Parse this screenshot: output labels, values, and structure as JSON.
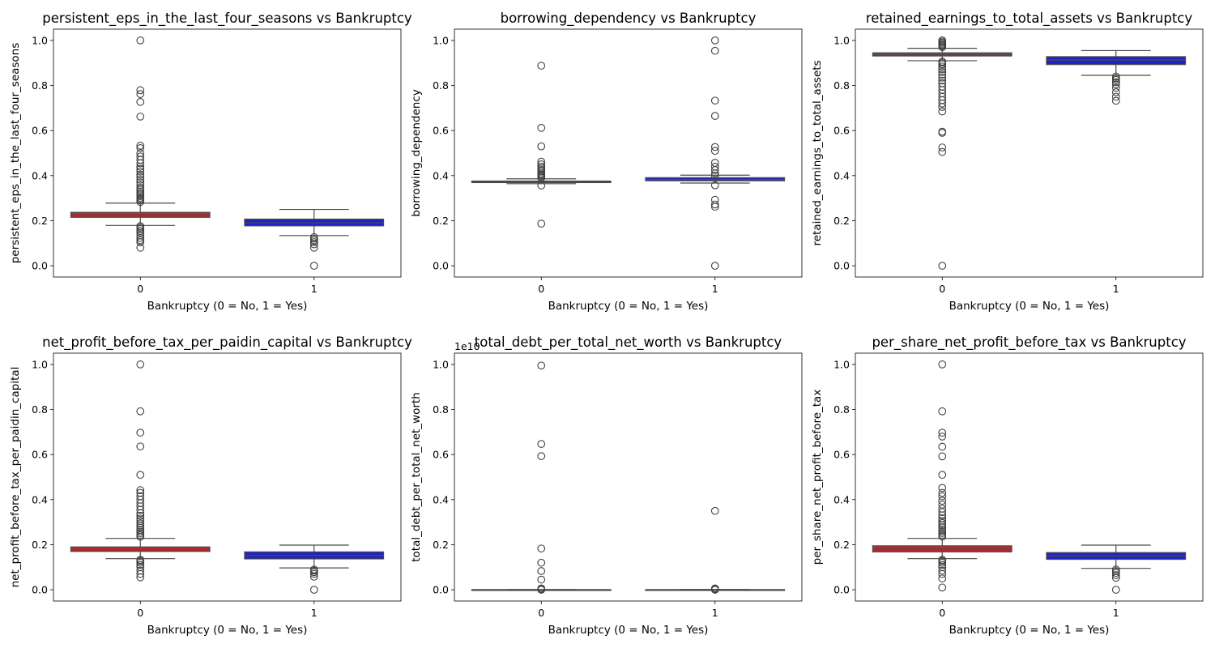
{
  "figure": {
    "colors": {
      "class_0": "#c0282c",
      "class_1": "#1f22c9",
      "line": "#4a4a4a"
    }
  },
  "chart_data": [
    {
      "type": "box",
      "title": "persistent_eps_in_the_last_four_seasons vs Bankruptcy",
      "xlabel": "Bankruptcy (0 = No, 1 = Yes)",
      "ylabel": "persistent_eps_in_the_last_four_seasons",
      "categories": [
        "0",
        "1"
      ],
      "ylim": [
        -0.05,
        1.05
      ],
      "yticks": [
        0.0,
        0.2,
        0.4,
        0.6,
        0.8,
        1.0
      ],
      "ytick_labels": [
        "0.0",
        "0.2",
        "0.4",
        "0.6",
        "0.8",
        "1.0"
      ],
      "offset_text": "",
      "boxes": [
        {
          "q1": 0.215,
          "median": 0.224,
          "q3": 0.237,
          "whislo": 0.179,
          "whishi": 0.278,
          "color": "#c0282c",
          "fliers": [
            0.08,
            0.104,
            0.113,
            0.123,
            0.135,
            0.147,
            0.155,
            0.163,
            0.17,
            0.176,
            0.283,
            0.29,
            0.296,
            0.302,
            0.309,
            0.316,
            0.322,
            0.33,
            0.338,
            0.346,
            0.358,
            0.37,
            0.382,
            0.395,
            0.405,
            0.418,
            0.43,
            0.44,
            0.455,
            0.47,
            0.485,
            0.5,
            0.522,
            0.533,
            0.662,
            0.727,
            0.762,
            0.779,
            1.0
          ]
        },
        {
          "q1": 0.177,
          "median": 0.19,
          "q3": 0.207,
          "whislo": 0.134,
          "whishi": 0.25,
          "color": "#1f22c9",
          "fliers": [
            0.0,
            0.08,
            0.095,
            0.105,
            0.113,
            0.12,
            0.127
          ]
        }
      ]
    },
    {
      "type": "box",
      "title": "borrowing_dependency vs Bankruptcy",
      "xlabel": "Bankruptcy (0 = No, 1 = Yes)",
      "ylabel": "borrowing_dependency",
      "categories": [
        "0",
        "1"
      ],
      "ylim": [
        -0.05,
        1.05
      ],
      "yticks": [
        0.0,
        0.2,
        0.4,
        0.6,
        0.8,
        1.0
      ],
      "ytick_labels": [
        "0.0",
        "0.2",
        "0.4",
        "0.6",
        "0.8",
        "1.0"
      ],
      "offset_text": "",
      "boxes": [
        {
          "q1": 0.369,
          "median": 0.372,
          "q3": 0.376,
          "whislo": 0.364,
          "whishi": 0.386,
          "color": "#c0282c",
          "fliers": [
            0.187,
            0.356,
            0.39,
            0.395,
            0.4,
            0.405,
            0.41,
            0.418,
            0.425,
            0.432,
            0.44,
            0.45,
            0.462,
            0.53,
            0.612,
            0.888
          ]
        },
        {
          "q1": 0.377,
          "median": 0.383,
          "q3": 0.391,
          "whislo": 0.367,
          "whishi": 0.402,
          "color": "#1f22c9",
          "fliers": [
            0.0,
            0.262,
            0.272,
            0.293,
            0.357,
            0.4,
            0.41,
            0.425,
            0.44,
            0.457,
            0.51,
            0.527,
            0.665,
            0.733,
            0.954,
            1.0
          ]
        }
      ]
    },
    {
      "type": "box",
      "title": "retained_earnings_to_total_assets vs Bankruptcy",
      "xlabel": "Bankruptcy (0 = No, 1 = Yes)",
      "ylabel": "retained_earnings_to_total_assets",
      "categories": [
        "0",
        "1"
      ],
      "ylim": [
        -0.05,
        1.05
      ],
      "yticks": [
        0.0,
        0.2,
        0.4,
        0.6,
        0.8,
        1.0
      ],
      "ytick_labels": [
        "0.0",
        "0.2",
        "0.4",
        "0.6",
        "0.8",
        "1.0"
      ],
      "offset_text": "",
      "boxes": [
        {
          "q1": 0.931,
          "median": 0.937,
          "q3": 0.945,
          "whislo": 0.91,
          "whishi": 0.965,
          "color": "#c0282c",
          "fliers": [
            0.0,
            0.505,
            0.525,
            0.59,
            0.595,
            0.685,
            0.705,
            0.72,
            0.735,
            0.75,
            0.765,
            0.78,
            0.795,
            0.81,
            0.822,
            0.835,
            0.848,
            0.86,
            0.872,
            0.884,
            0.894,
            0.902,
            0.906,
            0.97,
            0.975,
            0.98,
            0.985,
            0.99,
            0.995,
            1.0
          ]
        },
        {
          "q1": 0.893,
          "median": 0.913,
          "q3": 0.928,
          "whislo": 0.845,
          "whishi": 0.955,
          "color": "#1f22c9",
          "fliers": [
            0.732,
            0.75,
            0.77,
            0.79,
            0.805,
            0.815,
            0.825,
            0.832,
            0.84
          ]
        }
      ]
    },
    {
      "type": "box",
      "title": "net_profit_before_tax_per_paidin_capital vs Bankruptcy",
      "xlabel": "Bankruptcy (0 = No, 1 = Yes)",
      "ylabel": "net_profit_before_tax_per_paidin_capital",
      "categories": [
        "0",
        "1"
      ],
      "ylim": [
        -0.05,
        1.05
      ],
      "yticks": [
        0.0,
        0.2,
        0.4,
        0.6,
        0.8,
        1.0
      ],
      "ytick_labels": [
        "0.0",
        "0.2",
        "0.4",
        "0.6",
        "0.8",
        "1.0"
      ],
      "offset_text": "",
      "boxes": [
        {
          "q1": 0.17,
          "median": 0.178,
          "q3": 0.19,
          "whislo": 0.138,
          "whishi": 0.228,
          "color": "#c0282c",
          "fliers": [
            0.055,
            0.07,
            0.085,
            0.1,
            0.11,
            0.12,
            0.128,
            0.133,
            0.235,
            0.242,
            0.25,
            0.258,
            0.266,
            0.275,
            0.284,
            0.294,
            0.305,
            0.316,
            0.328,
            0.34,
            0.355,
            0.37,
            0.385,
            0.4,
            0.415,
            0.43,
            0.442,
            0.51,
            0.636,
            0.697,
            0.792,
            1.0
          ]
        },
        {
          "q1": 0.137,
          "median": 0.152,
          "q3": 0.168,
          "whislo": 0.097,
          "whishi": 0.198,
          "color": "#1f22c9",
          "fliers": [
            0.0,
            0.058,
            0.07,
            0.078,
            0.085,
            0.09
          ]
        }
      ]
    },
    {
      "type": "box",
      "title": "total_debt_per_total_net_worth vs Bankruptcy",
      "xlabel": "Bankruptcy (0 = No, 1 = Yes)",
      "ylabel": "total_debt_per_total_net_worth",
      "categories": [
        "0",
        "1"
      ],
      "ylim": [
        -0.05,
        1.05
      ],
      "yticks": [
        0.0,
        0.2,
        0.4,
        0.6,
        0.8,
        1.0
      ],
      "ytick_labels": [
        "0.0",
        "0.2",
        "0.4",
        "0.6",
        "0.8",
        "1.0"
      ],
      "offset_text": "1e10",
      "boxes": [
        {
          "q1": 0.0,
          "median": 0.0,
          "q3": 0.0005,
          "whislo": 0.0,
          "whishi": 0.001,
          "color": "#c0282c",
          "fliers": [
            0.0,
            0.003,
            0.006,
            0.045,
            0.083,
            0.12,
            0.183,
            0.593,
            0.647,
            0.995
          ]
        },
        {
          "q1": 0.0,
          "median": 0.0,
          "q3": 0.0006,
          "whislo": 0.0,
          "whishi": 0.0012,
          "color": "#1f22c9",
          "fliers": [
            0.0,
            0.003,
            0.006,
            0.35
          ]
        }
      ]
    },
    {
      "type": "box",
      "title": "per_share_net_profit_before_tax vs Bankruptcy",
      "xlabel": "Bankruptcy (0 = No, 1 = Yes)",
      "ylabel": "per_share_net_profit_before_tax",
      "categories": [
        "0",
        "1"
      ],
      "ylim": [
        -0.05,
        1.05
      ],
      "yticks": [
        0.0,
        0.2,
        0.4,
        0.6,
        0.8,
        1.0
      ],
      "ytick_labels": [
        "0.0",
        "0.2",
        "0.4",
        "0.6",
        "0.8",
        "1.0"
      ],
      "offset_text": "",
      "boxes": [
        {
          "q1": 0.168,
          "median": 0.18,
          "q3": 0.195,
          "whislo": 0.138,
          "whishi": 0.228,
          "color": "#c0282c",
          "fliers": [
            0.01,
            0.05,
            0.07,
            0.085,
            0.1,
            0.11,
            0.12,
            0.128,
            0.133,
            0.236,
            0.244,
            0.252,
            0.26,
            0.268,
            0.277,
            0.286,
            0.296,
            0.306,
            0.317,
            0.33,
            0.345,
            0.36,
            0.378,
            0.395,
            0.415,
            0.43,
            0.452,
            0.51,
            0.592,
            0.635,
            0.68,
            0.697,
            0.792,
            1.0
          ]
        },
        {
          "q1": 0.135,
          "median": 0.15,
          "q3": 0.165,
          "whislo": 0.095,
          "whishi": 0.198,
          "color": "#1f22c9",
          "fliers": [
            0.0,
            0.053,
            0.065,
            0.075,
            0.083,
            0.09
          ]
        }
      ]
    }
  ]
}
